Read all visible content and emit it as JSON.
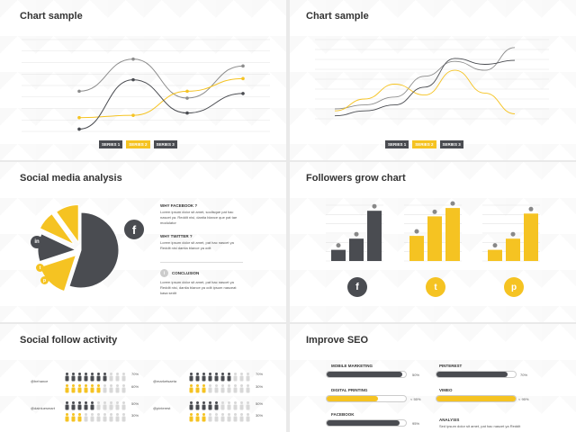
{
  "slides": {
    "chart1": {
      "title": "Chart sample",
      "legend": [
        "SERIES 1",
        "SERIES 2",
        "SERIES 3"
      ]
    },
    "chart2": {
      "title": "Chart sample",
      "legend": [
        "SERIES 1",
        "SERIES 2",
        "SERIES 3"
      ]
    },
    "social": {
      "title": "Social media analysis",
      "facebook_heading": "WHY FACEBOOK ?",
      "facebook_text": "Lorem ipsum dolor sit amet, sociisque pat hac nascet ya. Reddit nisi, dantia blance que pat tae modulator",
      "twitter_heading": "WHY TWITTER ?",
      "twitter_text": "Lorem ipsum dolor sit amet, pat hac nascet ya Reddit nisi dantia blance ya odit",
      "conclusion_heading": "CONCLUSION",
      "conclusion_text": "Lorem ipsum dolor sit amet, pat hac nascet ya Reddit nisi, dantia blance ya odit ipsum nasceat kasa sedit"
    },
    "followers": {
      "title": "Followers grow chart"
    },
    "activity": {
      "title": "Social follow activity",
      "rows": [
        {
          "name": "@behance",
          "pct_a": "70%",
          "pct_b": "60%"
        },
        {
          "name": "@dainiuesmart",
          "pct_a": "50%",
          "pct_b": "30%"
        },
        {
          "name": "@marketsaeta",
          "pct_a": "70%",
          "pct_b": "30%"
        },
        {
          "name": "@pinterest",
          "pct_a": "50%",
          "pct_b": "30%"
        }
      ]
    },
    "seo": {
      "title": "Improve SEO",
      "items": [
        {
          "label": "MOBILE MARKETING",
          "value": "50%"
        },
        {
          "label": "PINTEREST",
          "value": "70%"
        },
        {
          "label": "DIGITAL PRINTING",
          "value": "< 55%"
        },
        {
          "label": "VIMEO",
          "value": "< 95%"
        },
        {
          "label": "FACEBOOK",
          "value": "95%"
        }
      ],
      "analysis_heading": "ANALYSIS",
      "analysis_text": "Sed ipsum dolor sit amet, pat hac nascet ya Reddit"
    }
  },
  "colors": {
    "yellow": "#f5c322",
    "dark": "#4a4c51",
    "grey": "#8c8c8c"
  },
  "chart_data": [
    {
      "type": "line",
      "title": "Chart sample",
      "x": [
        1,
        2,
        3,
        4,
        5,
        6,
        7
      ],
      "series": [
        {
          "name": "SERIES 1",
          "values": [
            null,
            3.5,
            null,
            6.3,
            null,
            2.9,
            5.7
          ]
        },
        {
          "name": "SERIES 2",
          "values": [
            null,
            1.2,
            null,
            1.4,
            null,
            3.5,
            4.6
          ]
        },
        {
          "name": "SERIES 3",
          "values": [
            null,
            0.2,
            null,
            4.5,
            null,
            1.6,
            3.3
          ]
        }
      ],
      "ylim": [
        0,
        8
      ],
      "grid": true,
      "legend": "bottom"
    },
    {
      "type": "line",
      "title": "Chart sample",
      "series": [
        {
          "name": "SERIES 1",
          "values": [
            1,
            1.4,
            2.2,
            4.3,
            5.8,
            4.9,
            7.2
          ]
        },
        {
          "name": "SERIES 2",
          "values": [
            0.8,
            2.0,
            3.5,
            2.4,
            4.9,
            2.6,
            0.5
          ]
        },
        {
          "name": "SERIES 3",
          "values": [
            0.3,
            0.8,
            1.4,
            3.2,
            6.1,
            5.5,
            5.9
          ]
        }
      ],
      "ylim": [
        0,
        8
      ],
      "grid": true,
      "legend": "bottom"
    },
    {
      "type": "pie",
      "title": "Social media analysis",
      "slices": [
        {
          "name": "facebook",
          "value": 55,
          "color": "#4a4c51"
        },
        {
          "name": "twitter",
          "value": 15,
          "color": "#f5c322"
        },
        {
          "name": "linkedin",
          "value": 12,
          "color": "#4a4c51"
        },
        {
          "name": "pinterest",
          "value": 8,
          "color": "#f5c322"
        },
        {
          "name": "other",
          "value": 10,
          "color": "#f5c322"
        }
      ]
    },
    {
      "type": "bar",
      "title": "Followers grow chart",
      "groups": [
        {
          "name": "facebook",
          "color": "#4a4c51",
          "values": [
            20,
            40,
            90
          ]
        },
        {
          "name": "twitter",
          "color": "#f5c322",
          "values": [
            45,
            80,
            95
          ]
        },
        {
          "name": "pinterest",
          "color": "#f5c322",
          "values": [
            20,
            40,
            85
          ]
        }
      ]
    }
  ]
}
